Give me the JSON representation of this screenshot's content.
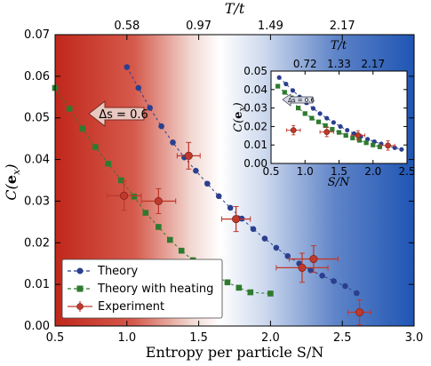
{
  "chart_data": [
    {
      "type": "scatter",
      "xlabel": "Entropy per particle S/N",
      "ylabel": "C(e_x)",
      "top_axis_label": "T/t",
      "xlim": [
        0.5,
        3.0
      ],
      "ylim": [
        0.0,
        0.07
      ],
      "x_ticks": [
        "0.5",
        "1.0",
        "1.5",
        "2.0",
        "2.5",
        "3.0"
      ],
      "y_ticks": [
        "0.00",
        "0.01",
        "0.02",
        "0.03",
        "0.04",
        "0.05",
        "0.06",
        "0.07"
      ],
      "top_ticks": [
        {
          "x": 1.0,
          "label": "0.58"
        },
        {
          "x": 1.5,
          "label": "0.97"
        },
        {
          "x": 2.0,
          "label": "1.49"
        },
        {
          "x": 2.5,
          "label": "2.17"
        }
      ],
      "annotation": "Δs = 0.6",
      "legend_position": "lower-left",
      "series": [
        {
          "name": "Theory",
          "color": "#2b3f8f",
          "marker": "circle",
          "line": "dashed",
          "x": [
            1.0,
            1.08,
            1.16,
            1.24,
            1.32,
            1.4,
            1.48,
            1.56,
            1.64,
            1.72,
            1.8,
            1.88,
            1.96,
            2.04,
            2.12,
            2.2,
            2.28,
            2.36,
            2.44,
            2.52,
            2.6
          ],
          "y": [
            0.0622,
            0.0572,
            0.0524,
            0.048,
            0.0441,
            0.0405,
            0.0373,
            0.0342,
            0.0312,
            0.0284,
            0.0258,
            0.0233,
            0.021,
            0.0188,
            0.0168,
            0.015,
            0.0134,
            0.0121,
            0.0108,
            0.0096,
            0.0079
          ]
        },
        {
          "name": "Theory with heating",
          "color": "#2f7a2f",
          "marker": "square",
          "line": "dashed",
          "x": [
            0.5,
            0.6,
            0.69,
            0.78,
            0.87,
            0.96,
            1.05,
            1.13,
            1.22,
            1.3,
            1.38,
            1.46,
            1.54,
            1.62,
            1.7,
            1.78,
            1.86,
            2.0
          ],
          "y": [
            0.0572,
            0.0522,
            0.0474,
            0.043,
            0.039,
            0.035,
            0.0311,
            0.0272,
            0.0238,
            0.0207,
            0.0181,
            0.0158,
            0.0138,
            0.012,
            0.0105,
            0.0092,
            0.0081,
            0.0078
          ]
        },
        {
          "name": "Experiment",
          "color": "#c0392b",
          "marker": "circle-errorbar",
          "x": [
            0.98,
            1.22,
            1.43,
            1.76,
            2.22,
            2.3,
            2.62
          ],
          "y": [
            0.0313,
            0.03,
            0.0409,
            0.0257,
            0.014,
            0.0161,
            0.0033
          ],
          "xerr": [
            0.12,
            0.12,
            0.08,
            0.1,
            0.18,
            0.17,
            0.08
          ],
          "yerr": [
            0.0035,
            0.003,
            0.0032,
            0.003,
            0.0035,
            0.0032,
            0.003
          ]
        }
      ]
    },
    {
      "type": "scatter",
      "role": "inset",
      "xlabel": "S/N",
      "ylabel": "C(e_x)",
      "top_axis_label": "T/t",
      "xlim": [
        0.5,
        2.5
      ],
      "ylim": [
        0.0,
        0.05
      ],
      "x_ticks": [
        "0.5",
        "1.0",
        "1.5",
        "2.0",
        "2.5"
      ],
      "y_ticks": [
        "0.00",
        "0.01",
        "0.02",
        "0.03",
        "0.04",
        "0.05"
      ],
      "top_ticks": [
        {
          "x": 1.0,
          "label": "0.72"
        },
        {
          "x": 1.5,
          "label": "1.33"
        },
        {
          "x": 2.0,
          "label": "2.17"
        }
      ],
      "annotation": "Δs = 0.6",
      "series": [
        {
          "name": "Theory",
          "color": "#2b3f8f",
          "marker": "circle",
          "x": [
            0.62,
            0.72,
            0.82,
            0.92,
            1.02,
            1.12,
            1.22,
            1.32,
            1.42,
            1.52,
            1.62,
            1.72,
            1.82,
            1.92,
            2.02,
            2.12,
            2.22,
            2.32,
            2.42
          ],
          "y": [
            0.0465,
            0.043,
            0.0395,
            0.036,
            0.0328,
            0.0298,
            0.027,
            0.0245,
            0.0222,
            0.02,
            0.018,
            0.0162,
            0.0146,
            0.0131,
            0.0118,
            0.0106,
            0.0095,
            0.0085,
            0.0076
          ]
        },
        {
          "name": "Theory with heating",
          "color": "#2f7a2f",
          "marker": "square",
          "x": [
            0.6,
            0.7,
            0.8,
            0.9,
            1.0,
            1.1,
            1.2,
            1.3,
            1.4,
            1.5,
            1.6,
            1.7,
            1.8,
            1.9,
            2.0,
            2.1
          ],
          "y": [
            0.0418,
            0.0385,
            0.0355,
            0.03,
            0.027,
            0.0245,
            0.0225,
            0.0205,
            0.0185,
            0.0168,
            0.0152,
            0.0138,
            0.0125,
            0.0112,
            0.01,
            0.009
          ]
        },
        {
          "name": "Experiment",
          "color": "#c0392b",
          "marker": "circle-errorbar",
          "x": [
            0.83,
            1.32,
            1.78,
            2.22
          ],
          "y": [
            0.018,
            0.017,
            0.0152,
            0.0097
          ],
          "xerr": [
            0.1,
            0.1,
            0.1,
            0.1
          ],
          "yerr": [
            0.0025,
            0.0025,
            0.0025,
            0.0025
          ]
        }
      ]
    }
  ]
}
